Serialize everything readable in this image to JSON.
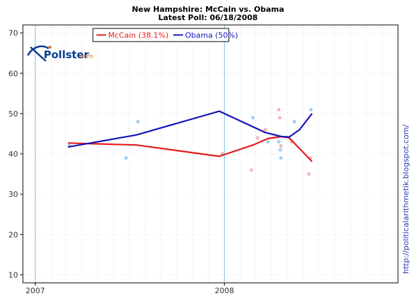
{
  "chart_data": {
    "type": "line",
    "title": "New Hampshire: McCain vs. Obama",
    "subtitle": "Latest Poll: 06/18/2008",
    "ylim": [
      8,
      72
    ],
    "y_ticks": [
      10,
      20,
      30,
      40,
      50,
      60,
      70
    ],
    "xlim": [
      "2006-12-08",
      "2008-12-01"
    ],
    "x_ticks": [
      {
        "date": "2007-01-01",
        "label": "2007"
      },
      {
        "date": "2008-01-01",
        "label": "2008"
      }
    ],
    "grid": true,
    "legend_position": "top-left",
    "series": [
      {
        "name": "McCain (38.1%)",
        "color": "#e31a1c",
        "point_color": "#f4b6c2",
        "trend": [
          {
            "x": "2007-03-05",
            "y": 42.7
          },
          {
            "x": "2007-07-15",
            "y": 42.2
          },
          {
            "x": "2007-12-22",
            "y": 39.4
          },
          {
            "x": "2008-02-25",
            "y": 42.2
          },
          {
            "x": "2008-03-25",
            "y": 43.8
          },
          {
            "x": "2008-04-20",
            "y": 44.3
          },
          {
            "x": "2008-05-05",
            "y": 44.0
          },
          {
            "x": "2008-06-18",
            "y": 38.1
          }
        ],
        "polls": [
          {
            "x": "2007-03-08",
            "y": 42
          },
          {
            "x": "2007-12-28",
            "y": 40
          },
          {
            "x": "2008-02-22",
            "y": 36
          },
          {
            "x": "2008-03-05",
            "y": 44
          },
          {
            "x": "2008-03-20",
            "y": 46
          },
          {
            "x": "2008-04-15",
            "y": 51
          },
          {
            "x": "2008-04-17",
            "y": 49
          },
          {
            "x": "2008-04-19",
            "y": 42
          },
          {
            "x": "2008-05-10",
            "y": 43
          },
          {
            "x": "2008-06-12",
            "y": 35
          },
          {
            "x": "2008-06-15",
            "y": 39
          }
        ]
      },
      {
        "name": "Obama (50%)",
        "color": "#1414b8",
        "point_color": "#a9cff0",
        "trend": [
          {
            "x": "2007-03-05",
            "y": 41.7
          },
          {
            "x": "2007-07-15",
            "y": 44.7
          },
          {
            "x": "2007-12-22",
            "y": 50.6
          },
          {
            "x": "2008-03-20",
            "y": 45.3
          },
          {
            "x": "2008-04-20",
            "y": 44.3
          },
          {
            "x": "2008-05-05",
            "y": 44.2
          },
          {
            "x": "2008-05-25",
            "y": 46.0
          },
          {
            "x": "2008-06-18",
            "y": 50.0
          }
        ],
        "polls": [
          {
            "x": "2007-03-08",
            "y": 42
          },
          {
            "x": "2007-06-25",
            "y": 39
          },
          {
            "x": "2007-07-18",
            "y": 48
          },
          {
            "x": "2008-02-25",
            "y": 49
          },
          {
            "x": "2008-03-25",
            "y": 43
          },
          {
            "x": "2008-04-15",
            "y": 43
          },
          {
            "x": "2008-04-18",
            "y": 41
          },
          {
            "x": "2008-04-19",
            "y": 39
          },
          {
            "x": "2008-05-15",
            "y": 48
          },
          {
            "x": "2008-06-16",
            "y": 51
          }
        ]
      }
    ]
  },
  "logo": {
    "name": "Pollster",
    "suffix": ".com"
  },
  "credit": "http://politicalarithmetik.blogspot.com/"
}
